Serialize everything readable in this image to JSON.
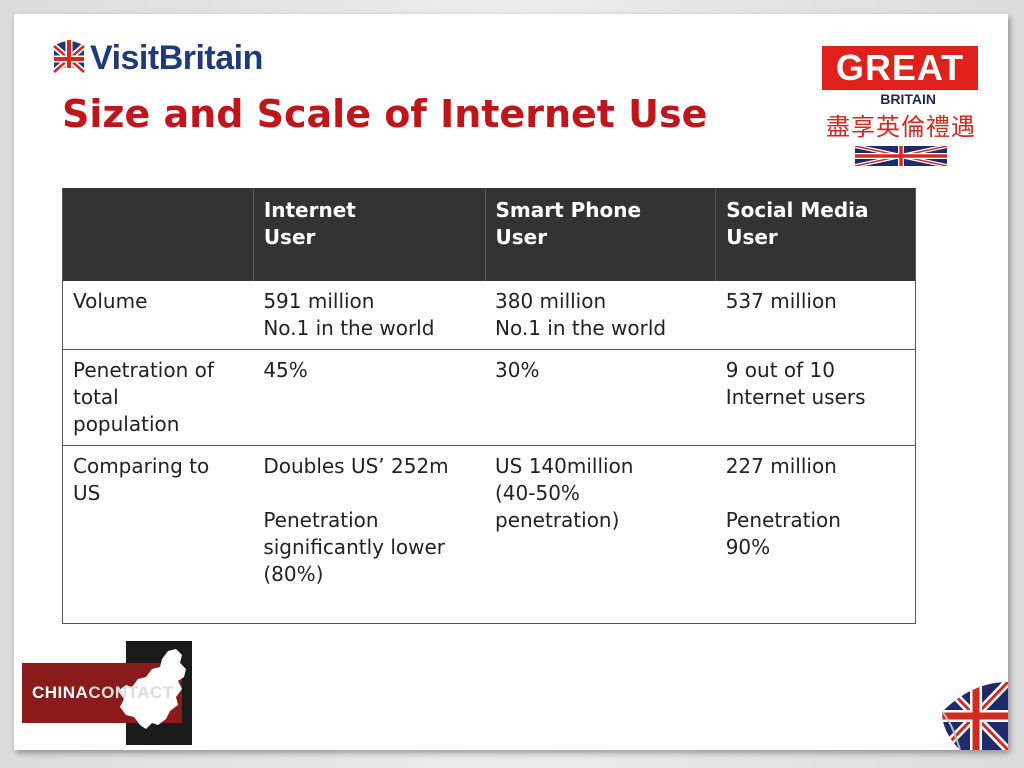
{
  "header": {
    "visit_logo_text": "VisitBritain",
    "title": "Size and Scale of Internet Use",
    "great_logo": {
      "great": "GREAT",
      "britain": "BRITAIN",
      "chinese": "盡享英倫禮遇"
    }
  },
  "table": {
    "headers": [
      "",
      "Internet\nUser",
      "Smart Phone\nUser",
      "Social Media\nUser"
    ],
    "header_lines": [
      [],
      [
        "Internet",
        "User"
      ],
      [
        "Smart Phone",
        "User"
      ],
      [
        "Social Media",
        "User"
      ]
    ],
    "rows": [
      {
        "label": [
          "Volume"
        ],
        "cells": [
          [
            "591 million",
            "No.1 in the world"
          ],
          [
            "380 million",
            "No.1 in the world"
          ],
          [
            "537 million"
          ]
        ]
      },
      {
        "label": [
          "Penetration of",
          "total",
          "population"
        ],
        "cells": [
          [
            "45%"
          ],
          [
            "30%"
          ],
          [
            "9 out of 10",
            "Internet users"
          ]
        ]
      },
      {
        "label": [
          "Comparing to",
          "US"
        ],
        "cells": [
          [
            "Doubles US’ 252m",
            "",
            "Penetration",
            "significantly lower",
            "(80%)"
          ],
          [
            "US 140million",
            "(40-50%",
            "penetration)"
          ],
          [
            "227 million",
            "",
            "Penetration",
            "90%"
          ]
        ]
      }
    ]
  },
  "footer": {
    "china_contact_text_a": "CHINA",
    "china_contact_text_b": "CONTACT"
  },
  "colors": {
    "title_red": "#c0161b",
    "header_bg": "#333333",
    "great_red": "#e0201b",
    "visit_blue": "#1f3a78"
  },
  "icons": [
    "union-jack-icon",
    "china-map-icon"
  ]
}
